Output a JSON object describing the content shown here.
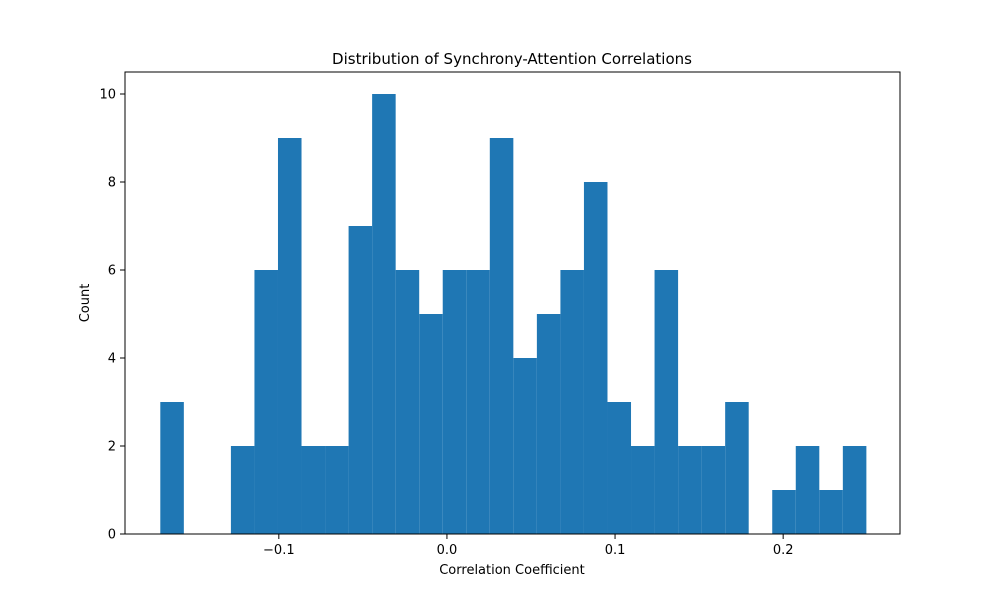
{
  "chart_data": {
    "type": "bar",
    "title": "Distribution of Synchrony-Attention Correlations",
    "xlabel": "Correlation Coefficient",
    "ylabel": "Count",
    "xlim": [
      -0.1915,
      0.2695
    ],
    "ylim": [
      0,
      10.5
    ],
    "x_ticks": [
      -0.1,
      0.0,
      0.1,
      0.2
    ],
    "x_tick_labels": [
      "−0.1",
      "0.0",
      "0.1",
      "0.2"
    ],
    "y_ticks": [
      0,
      2,
      4,
      6,
      8,
      10
    ],
    "y_tick_labels": [
      "0",
      "2",
      "4",
      "6",
      "8",
      "10"
    ],
    "bin_edges": [
      -0.1705,
      -0.1565,
      -0.1425,
      -0.1285,
      -0.1145,
      -0.1005,
      -0.0865,
      -0.0725,
      -0.0585,
      -0.0445,
      -0.0305,
      -0.0165,
      -0.0025,
      0.0115,
      0.0255,
      0.0395,
      0.0535,
      0.0675,
      0.0815,
      0.0955,
      0.1095,
      0.1235,
      0.1375,
      0.1515,
      0.1655,
      0.1795,
      0.1935,
      0.2075,
      0.2215,
      0.2355,
      0.2495
    ],
    "counts": [
      3,
      0,
      0,
      2,
      6,
      9,
      2,
      2,
      7,
      10,
      6,
      5,
      6,
      6,
      9,
      4,
      5,
      6,
      8,
      3,
      2,
      6,
      2,
      2,
      3,
      0,
      1,
      2,
      1,
      2
    ],
    "bar_color": "#1f77b4",
    "grid": false,
    "legend": "none"
  }
}
